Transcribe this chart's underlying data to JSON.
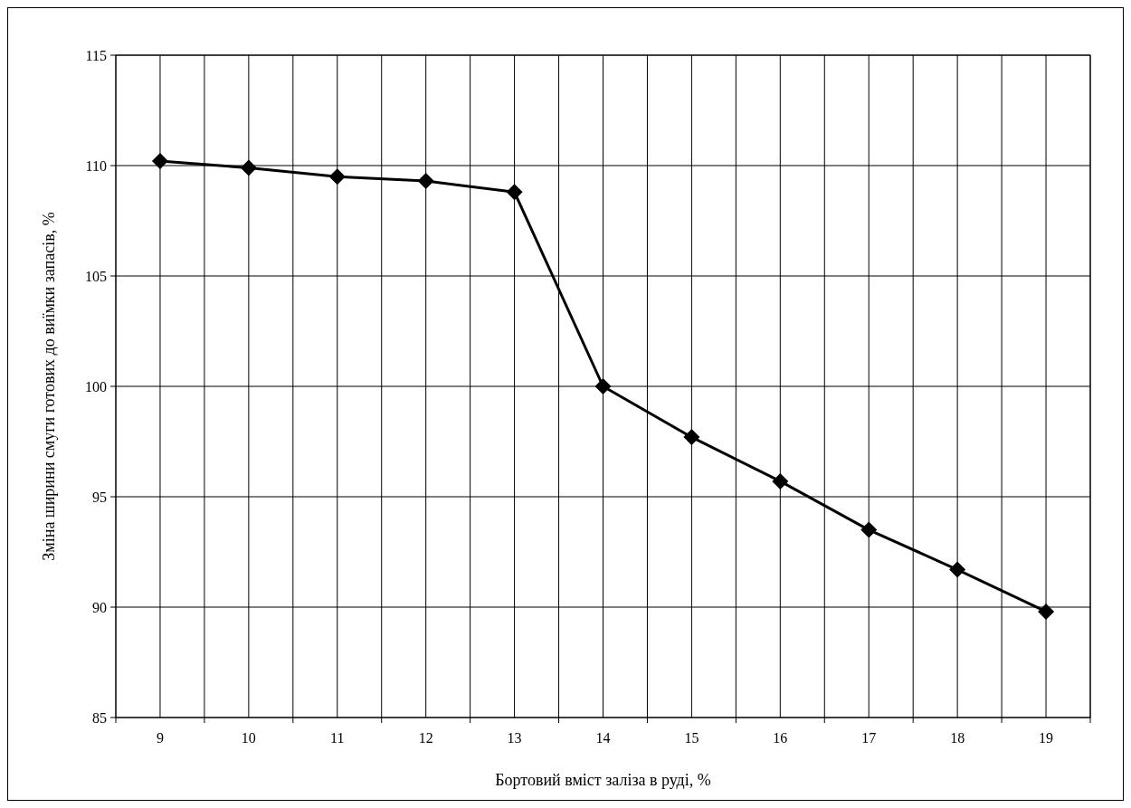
{
  "chart_data": {
    "type": "line",
    "xlabel": "Бортовий вміст заліза в руді, %",
    "ylabel": "Зміна ширини смуги готових до виїмки запасів, %",
    "categories": [
      "9",
      "10",
      "11",
      "12",
      "13",
      "14",
      "15",
      "16",
      "17",
      "18",
      "19"
    ],
    "series": [
      {
        "color": "#000000",
        "values": [
          110.2,
          109.9,
          109.5,
          109.3,
          108.8,
          100.0,
          97.7,
          95.7,
          93.5,
          91.7,
          89.8
        ]
      }
    ],
    "ylim": [
      85,
      115
    ],
    "yticks": [
      85,
      90,
      95,
      100,
      105,
      110,
      115
    ],
    "grid": true,
    "marker": "diamond",
    "line_style": "solid"
  }
}
